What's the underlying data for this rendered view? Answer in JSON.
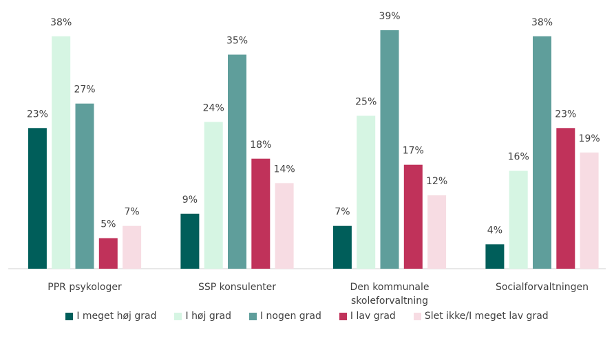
{
  "chart_data": {
    "type": "bar",
    "categories": [
      "PPR psykologer",
      "SSP konsulenter",
      "Den kommunale skoleforvaltning",
      "Socialforvaltningen"
    ],
    "series": [
      {
        "name": "I meget høj grad",
        "color": "#005e5a",
        "values": [
          23,
          9,
          7,
          4
        ],
        "value_labels": [
          "23%",
          "9%",
          "7%",
          "4%"
        ]
      },
      {
        "name": "I høj grad",
        "color": "#d6f5e3",
        "values": [
          38,
          24,
          25,
          16
        ],
        "value_labels": [
          "38%",
          "24%",
          "25%",
          "16%"
        ]
      },
      {
        "name": "I nogen grad",
        "color": "#5f9e9b",
        "values": [
          27,
          35,
          39,
          38
        ],
        "value_labels": [
          "27%",
          "35%",
          "39%",
          "38%"
        ]
      },
      {
        "name": "I lav grad",
        "color": "#c0325a",
        "values": [
          5,
          18,
          17,
          23
        ],
        "value_labels": [
          "5%",
          "18%",
          "17%",
          "23%"
        ]
      },
      {
        "name": "Slet ikke/I meget lav grad",
        "color": "#f7dce3",
        "values": [
          7,
          14,
          12,
          19
        ],
        "value_labels": [
          "7%",
          "14%",
          "12%",
          "19%"
        ]
      }
    ],
    "ylim": [
      0,
      40
    ],
    "legend": "bottom"
  }
}
